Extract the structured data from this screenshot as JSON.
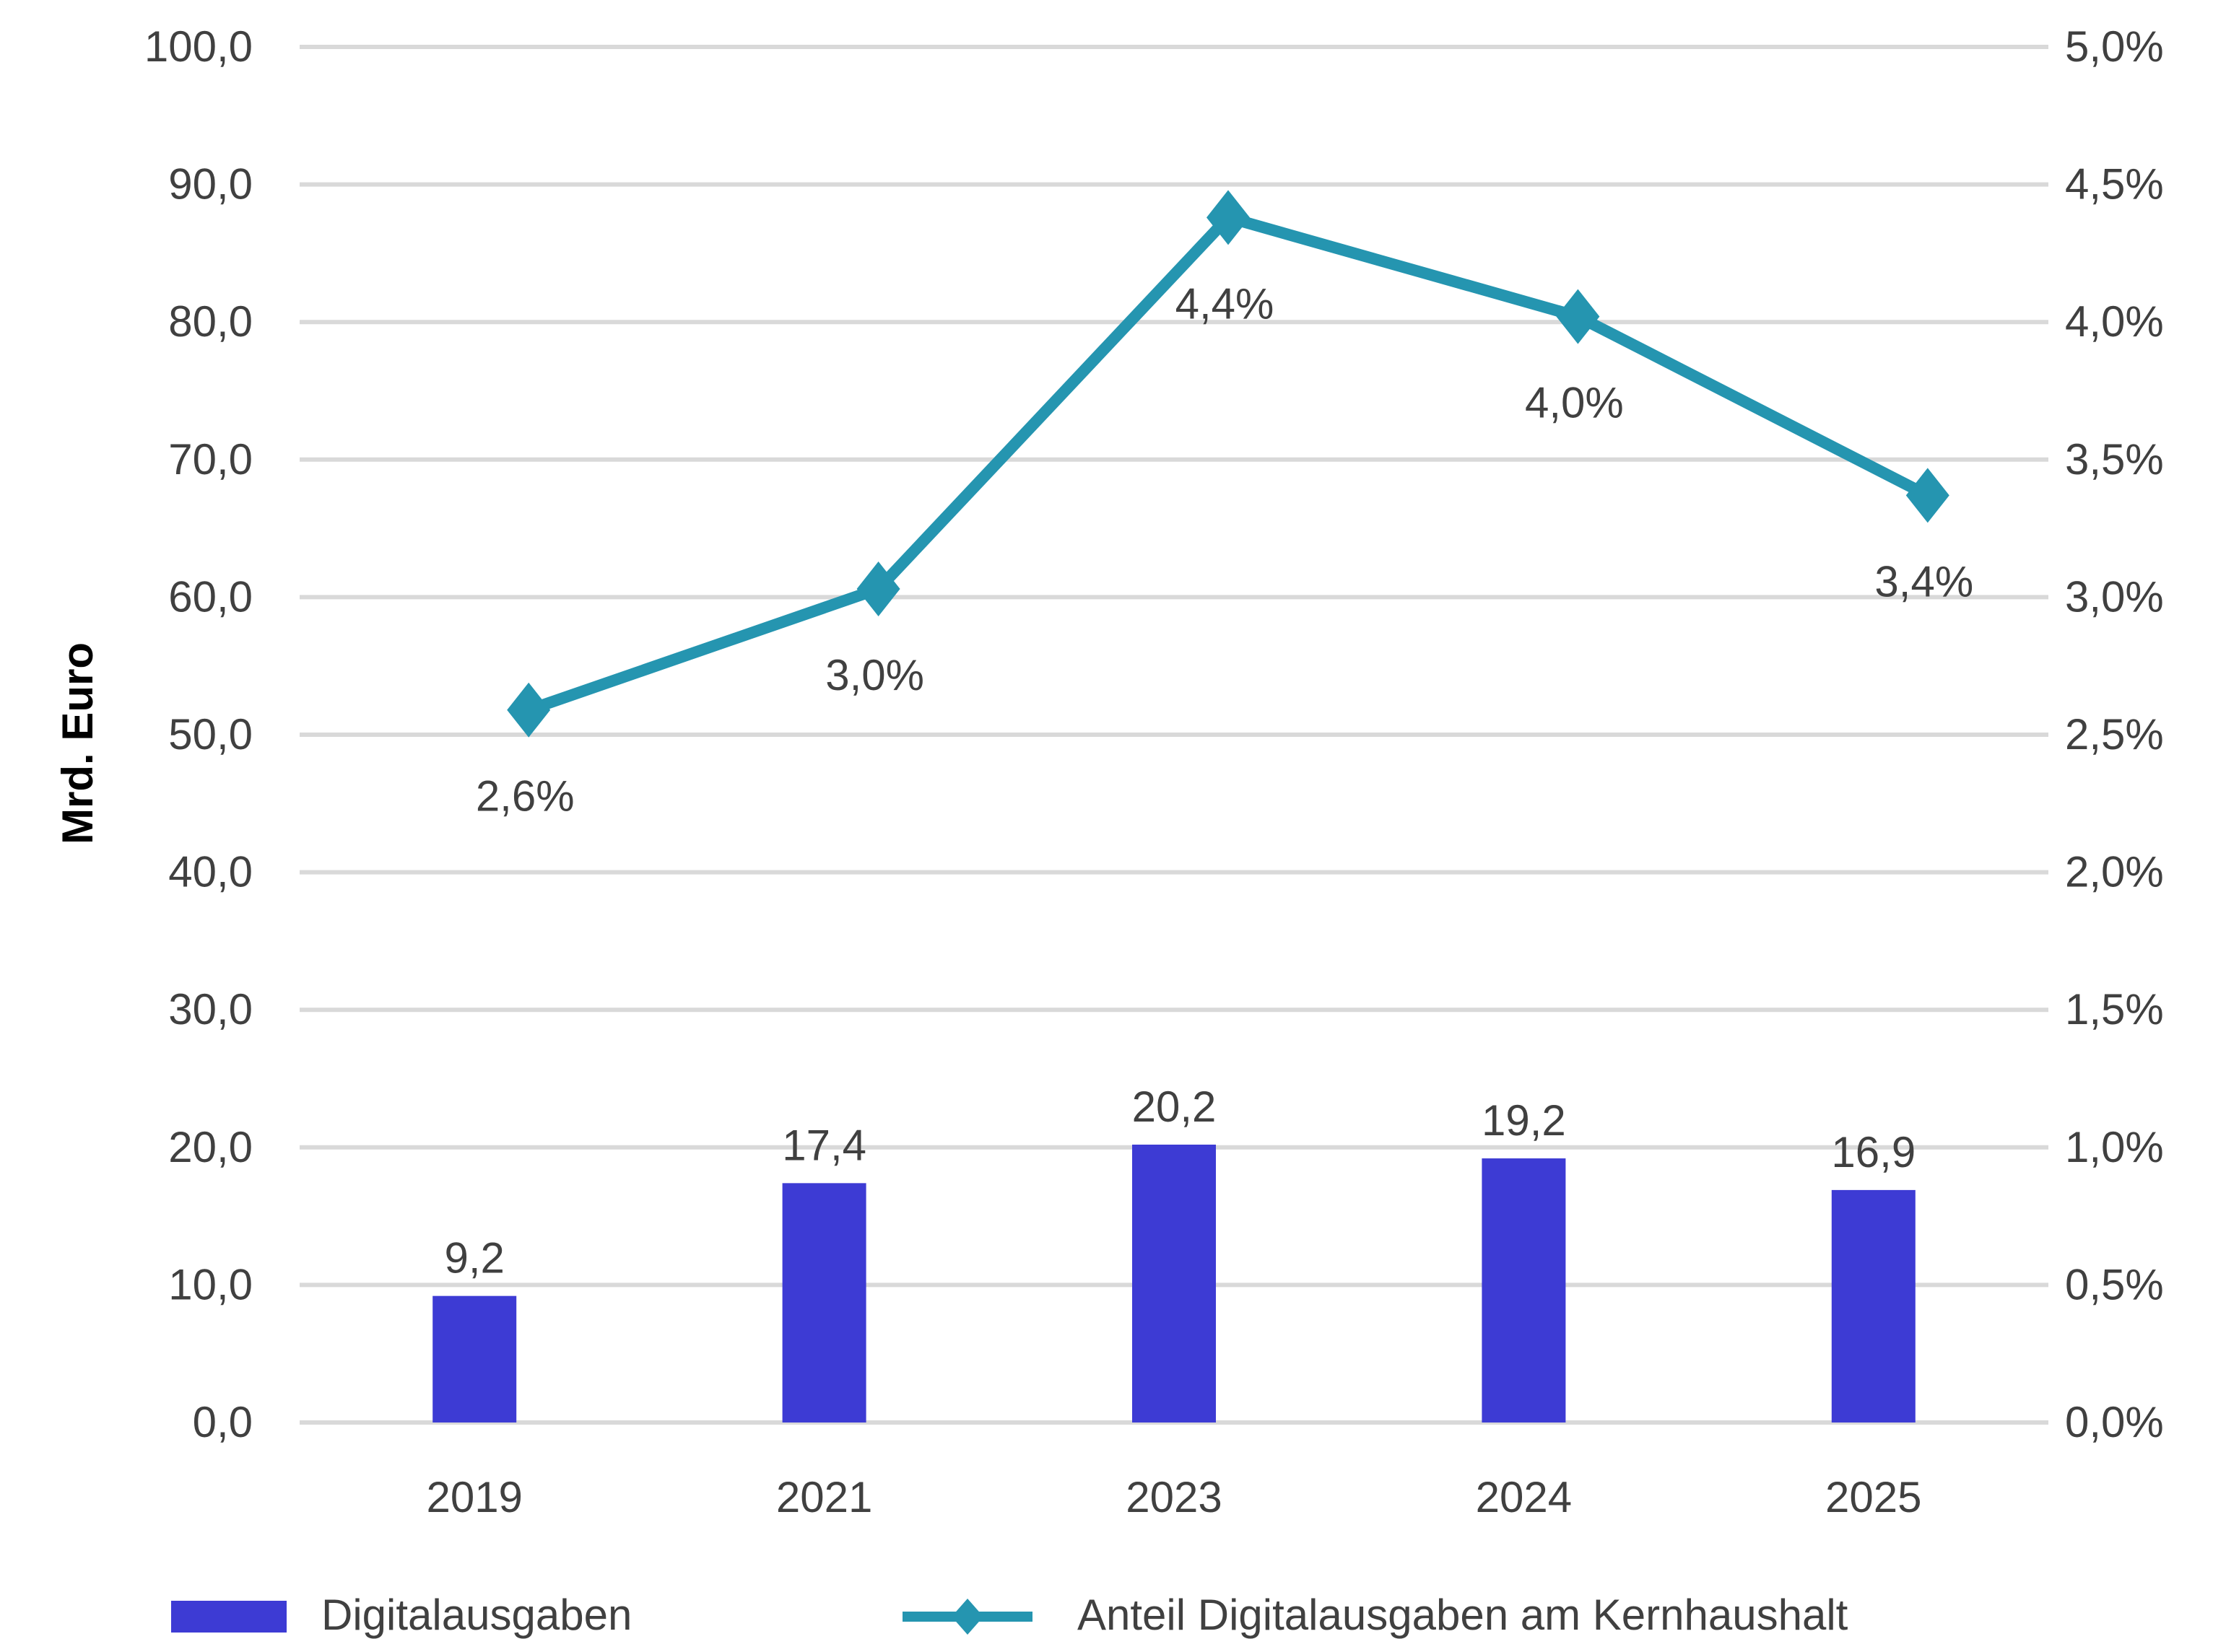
{
  "chart_data": {
    "type": "bar+line",
    "categories": [
      "2019",
      "2021",
      "2023",
      "2024",
      "2025"
    ],
    "series": [
      {
        "name": "Digitalausgaben",
        "type": "bar",
        "axis": "left",
        "values": [
          9.2,
          17.4,
          20.2,
          19.2,
          16.9
        ],
        "labels": [
          "9,2",
          "17,4",
          "20,2",
          "19,2",
          "16,9"
        ],
        "color": "#3D3BD4"
      },
      {
        "name": "Anteil Digitalausgaben am Kernhaushalt",
        "type": "line",
        "axis": "right",
        "marker": "diamond",
        "values": [
          2.59,
          3.03,
          4.38,
          4.02,
          3.37
        ],
        "labels": [
          "2,6%",
          "3,0%",
          "4,4%",
          "4,0%",
          "3,4%"
        ],
        "color": "#2595B0"
      }
    ],
    "ylabel": "Mrd. Euro",
    "ylim": [
      0,
      100
    ],
    "y2lim": [
      0,
      5
    ],
    "yticks": [
      "0,0",
      "10,0",
      "20,0",
      "30,0",
      "40,0",
      "50,0",
      "60,0",
      "70,0",
      "80,0",
      "90,0",
      "100,0"
    ],
    "y2ticks": [
      "0,0%",
      "0,5%",
      "1,0%",
      "1,5%",
      "2,0%",
      "2,5%",
      "3,0%",
      "3,5%",
      "4,0%",
      "4,5%",
      "5,0%"
    ],
    "grid": true,
    "legend_position": "bottom",
    "gridColor": "#D9D9D9"
  }
}
